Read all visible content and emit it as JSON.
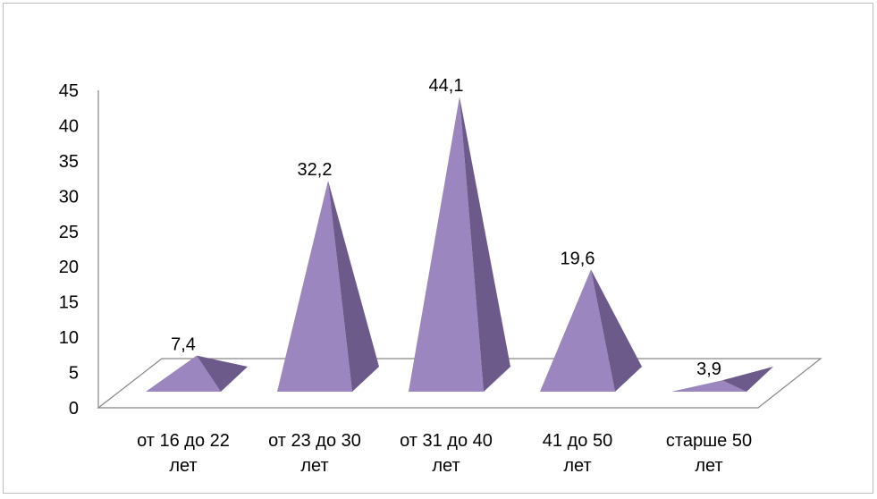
{
  "chart_data": {
    "type": "bar",
    "style": "3d-pyramid",
    "categories": [
      [
        "от 16 до 22",
        "лет"
      ],
      [
        "от 23 до 30",
        "лет"
      ],
      [
        "от 31 до 40",
        "лет"
      ],
      [
        "41 до 50",
        "лет"
      ],
      [
        "старше 50",
        "лет"
      ]
    ],
    "values": [
      7.4,
      32.2,
      44.1,
      19.6,
      3.9
    ],
    "data_labels": [
      "7,4",
      "32,2",
      "44,1",
      "19,6",
      "3,9"
    ],
    "ylim": [
      0,
      45
    ],
    "yticks": [
      0,
      5,
      10,
      15,
      20,
      25,
      30,
      35,
      40,
      45
    ],
    "title": "",
    "xlabel": "",
    "ylabel": "",
    "legend": "none",
    "grid": false,
    "colors": {
      "face_front": "#9c86bf",
      "face_side": "#6b5a8a",
      "axis": "#868686",
      "border": "#bfbfbf"
    }
  }
}
